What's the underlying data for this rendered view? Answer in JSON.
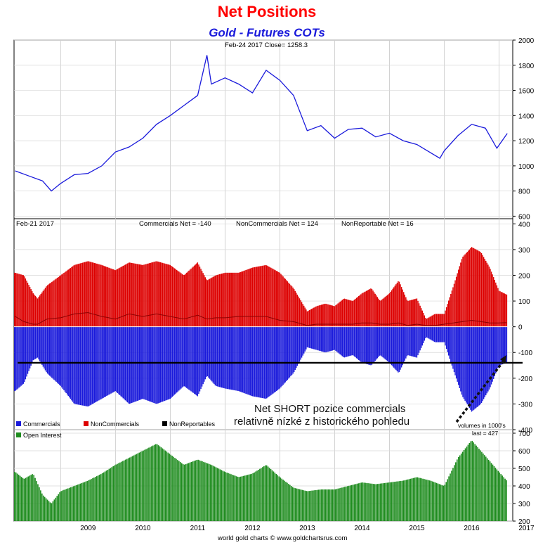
{
  "chart_data": [
    {
      "type": "line",
      "panel": "price",
      "title": "Net Positions",
      "subtitle": "Gold - Futures COTs",
      "header": "Feb-24  2017    Close= 1258.3",
      "x_ticks": [
        "2009",
        "2010",
        "2011",
        "2012",
        "2013",
        "2014",
        "2015",
        "2016",
        "2017"
      ],
      "x": [
        2008.17,
        2008.42,
        2008.67,
        2008.83,
        2009.0,
        2009.25,
        2009.5,
        2009.75,
        2010.0,
        2010.25,
        2010.5,
        2010.75,
        2011.0,
        2011.25,
        2011.5,
        2011.67,
        2011.75,
        2012.0,
        2012.25,
        2012.5,
        2012.75,
        2013.0,
        2013.25,
        2013.5,
        2013.75,
        2014.0,
        2014.25,
        2014.5,
        2014.75,
        2015.0,
        2015.25,
        2015.5,
        2015.92,
        2016.0,
        2016.25,
        2016.5,
        2016.75,
        2016.96,
        2017.15
      ],
      "series": [
        {
          "name": "",
          "color": "#1a1adb",
          "values": [
            960,
            920,
            880,
            800,
            860,
            930,
            940,
            1000,
            1110,
            1150,
            1220,
            1330,
            1400,
            1480,
            1560,
            1880,
            1650,
            1700,
            1650,
            1580,
            1760,
            1680,
            1560,
            1280,
            1320,
            1220,
            1290,
            1300,
            1230,
            1260,
            1200,
            1170,
            1060,
            1120,
            1240,
            1330,
            1300,
            1140,
            1258
          ]
        }
      ],
      "ylim": [
        580,
        2000
      ],
      "y_ticks": [
        600,
        800,
        1000,
        1200,
        1400,
        1600,
        1800,
        2000
      ]
    },
    {
      "type": "bar",
      "panel": "net positions",
      "header": {
        "date": "Feb-21  2017",
        "commercials": "Commercials Net = -140",
        "noncommercials": "NonCommercials Net = 124",
        "nonreportable": "NonReportable Net = 16"
      },
      "x_ticks": [
        "2009",
        "2010",
        "2011",
        "2012",
        "2013",
        "2014",
        "2015",
        "2016",
        "2017"
      ],
      "x": [
        2008.17,
        2008.33,
        2008.5,
        2008.58,
        2008.75,
        2009.0,
        2009.25,
        2009.5,
        2009.75,
        2010.0,
        2010.25,
        2010.5,
        2010.75,
        2011.0,
        2011.25,
        2011.5,
        2011.67,
        2011.83,
        2012.0,
        2012.25,
        2012.5,
        2012.75,
        2013.0,
        2013.25,
        2013.5,
        2013.67,
        2013.83,
        2014.0,
        2014.17,
        2014.33,
        2014.5,
        2014.67,
        2014.83,
        2015.0,
        2015.17,
        2015.33,
        2015.5,
        2015.67,
        2015.83,
        2016.0,
        2016.17,
        2016.33,
        2016.5,
        2016.67,
        2016.83,
        2017.0,
        2017.15
      ],
      "series": [
        {
          "name": "Commercials",
          "color": "#1a1adb",
          "values": [
            -250,
            -220,
            -130,
            -120,
            -180,
            -230,
            -300,
            -310,
            -280,
            -250,
            -300,
            -280,
            -300,
            -280,
            -230,
            -270,
            -190,
            -230,
            -240,
            -250,
            -270,
            -280,
            -240,
            -180,
            -80,
            -90,
            -100,
            -90,
            -120,
            -110,
            -140,
            -150,
            -110,
            -140,
            -180,
            -110,
            -120,
            -40,
            -60,
            -60,
            -170,
            -270,
            -330,
            -300,
            -240,
            -150,
            -140
          ]
        },
        {
          "name": "NonCommercials",
          "color": "#dd0000",
          "values": [
            210,
            200,
            130,
            110,
            160,
            200,
            240,
            255,
            240,
            220,
            250,
            240,
            255,
            240,
            200,
            250,
            180,
            200,
            210,
            210,
            230,
            240,
            210,
            150,
            60,
            80,
            90,
            80,
            110,
            100,
            130,
            150,
            100,
            130,
            180,
            100,
            110,
            30,
            50,
            50,
            160,
            270,
            310,
            290,
            230,
            140,
            124
          ]
        },
        {
          "name": "NonReportables",
          "color": "#000000",
          "values": [
            40,
            20,
            10,
            10,
            30,
            35,
            50,
            55,
            40,
            30,
            50,
            40,
            50,
            40,
            30,
            45,
            30,
            35,
            35,
            40,
            40,
            40,
            25,
            20,
            5,
            10,
            10,
            10,
            10,
            10,
            15,
            15,
            10,
            10,
            15,
            5,
            10,
            5,
            5,
            10,
            15,
            20,
            25,
            20,
            15,
            15,
            16
          ]
        }
      ],
      "reference_line": -140,
      "annotation": [
        "Net SHORT pozice commercials",
        "relativně nízké z historického pohledu"
      ],
      "ylim": [
        -400,
        420
      ],
      "y_ticks": [
        -400,
        -300,
        -200,
        -100,
        0,
        100,
        200,
        300,
        400
      ],
      "volume_note": "volumes in 1000's"
    },
    {
      "type": "bar",
      "panel": "open interest",
      "header": "last = 427",
      "x_ticks": [
        "2009",
        "2010",
        "2011",
        "2012",
        "2013",
        "2014",
        "2015",
        "2016",
        "2017"
      ],
      "x": [
        2008.17,
        2008.33,
        2008.5,
        2008.67,
        2008.83,
        2009.0,
        2009.25,
        2009.5,
        2009.75,
        2010.0,
        2010.25,
        2010.5,
        2010.75,
        2011.0,
        2011.25,
        2011.5,
        2011.75,
        2012.0,
        2012.25,
        2012.5,
        2012.75,
        2013.0,
        2013.25,
        2013.5,
        2013.75,
        2014.0,
        2014.25,
        2014.5,
        2014.75,
        2015.0,
        2015.25,
        2015.5,
        2015.75,
        2016.0,
        2016.25,
        2016.5,
        2016.75,
        2017.0,
        2017.15
      ],
      "series": [
        {
          "name": "Open Interest",
          "color": "#1e8c1e",
          "values": [
            480,
            440,
            470,
            350,
            300,
            370,
            400,
            430,
            470,
            520,
            560,
            600,
            640,
            580,
            520,
            550,
            520,
            480,
            450,
            470,
            520,
            450,
            390,
            370,
            380,
            380,
            400,
            420,
            410,
            420,
            430,
            450,
            430,
            400,
            560,
            660,
            570,
            480,
            427
          ]
        }
      ],
      "ylim": [
        200,
        720
      ],
      "y_ticks": [
        200,
        300,
        400,
        500,
        600,
        700
      ]
    }
  ],
  "legend": {
    "commercials": "Commercials",
    "noncommercials": "NonCommercials",
    "nonreportables": "NonReportables",
    "open_interest": "Open Interest"
  },
  "footer": "world gold charts © www.goldchartsrus.com"
}
